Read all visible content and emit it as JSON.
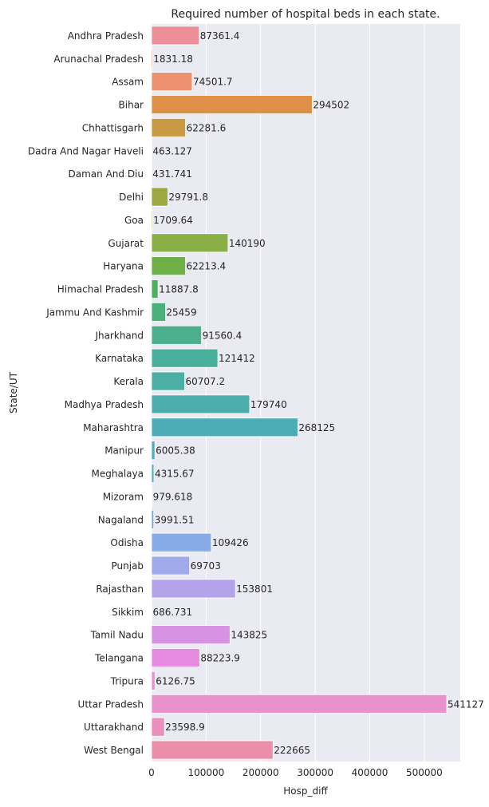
{
  "chart_data": {
    "type": "bar",
    "orientation": "horizontal",
    "title": "Required number of hospital beds in each state.",
    "xlabel": "Hosp_diff",
    "ylabel": "State/UT",
    "xlim": [
      0,
      566000
    ],
    "xticks": [
      0,
      100000,
      200000,
      300000,
      400000,
      500000
    ],
    "xtick_labels": [
      "0",
      "100000",
      "200000",
      "300000",
      "400000",
      "500000"
    ],
    "grid": true,
    "categories": [
      "Andhra Pradesh",
      "Arunachal Pradesh",
      "Assam",
      "Bihar",
      "Chhattisgarh",
      "Dadra And Nagar Haveli",
      "Daman And Diu",
      "Delhi",
      "Goa",
      "Gujarat",
      "Haryana",
      "Himachal Pradesh",
      "Jammu And Kashmir",
      "Jharkhand",
      "Karnataka",
      "Kerala",
      "Madhya Pradesh",
      "Maharashtra",
      "Manipur",
      "Meghalaya",
      "Mizoram",
      "Nagaland",
      "Odisha",
      "Punjab",
      "Rajasthan",
      "Sikkim",
      "Tamil Nadu",
      "Telangana",
      "Tripura",
      "Uttar Pradesh",
      "Uttarakhand",
      "West Bengal"
    ],
    "values": [
      87361.4,
      1831.18,
      74501.7,
      294502,
      62281.6,
      463.127,
      431.741,
      29791.8,
      1709.64,
      140190,
      62213.4,
      11887.8,
      25459,
      91560.4,
      121412,
      60707.2,
      179740,
      268125,
      6005.38,
      4315.67,
      979.618,
      3991.51,
      109426,
      69703,
      153801,
      686.731,
      143825,
      88223.9,
      6126.75,
      541127,
      23598.9,
      222665
    ],
    "value_labels": [
      "87361.4",
      "1831.18",
      "74501.7",
      "294502",
      "62281.6",
      "463.127",
      "431.741",
      "29791.8",
      "1709.64",
      "140190",
      "62213.4",
      "11887.8",
      "25459",
      "91560.4",
      "121412",
      "60707.2",
      "179740",
      "268125",
      "6005.38",
      "4315.67",
      "979.618",
      "3991.51",
      "109426",
      "69703",
      "153801",
      "686.731",
      "143825",
      "88223.9",
      "6126.75",
      "541127",
      "23598.9",
      "222665"
    ],
    "colors": [
      "#ed8f98",
      "#ec8f80",
      "#eb916f",
      "#de9048",
      "#c89a43",
      "#b9a145",
      "#aaa742",
      "#9da842",
      "#92ad44",
      "#8aaf46",
      "#6cb047",
      "#4fb15d",
      "#4bb17c",
      "#4cb08e",
      "#4bb09b",
      "#4bafa4",
      "#4baeac",
      "#4cacb5",
      "#4eaabd",
      "#55a9c8",
      "#63a7d6",
      "#74a5e3",
      "#88abe7",
      "#a0a9e9",
      "#b4a3eb",
      "#c69aea",
      "#d693e6",
      "#e68be1",
      "#ec8cd6",
      "#ea90cc",
      "#eb8fbe",
      "#ec8eab"
    ]
  }
}
